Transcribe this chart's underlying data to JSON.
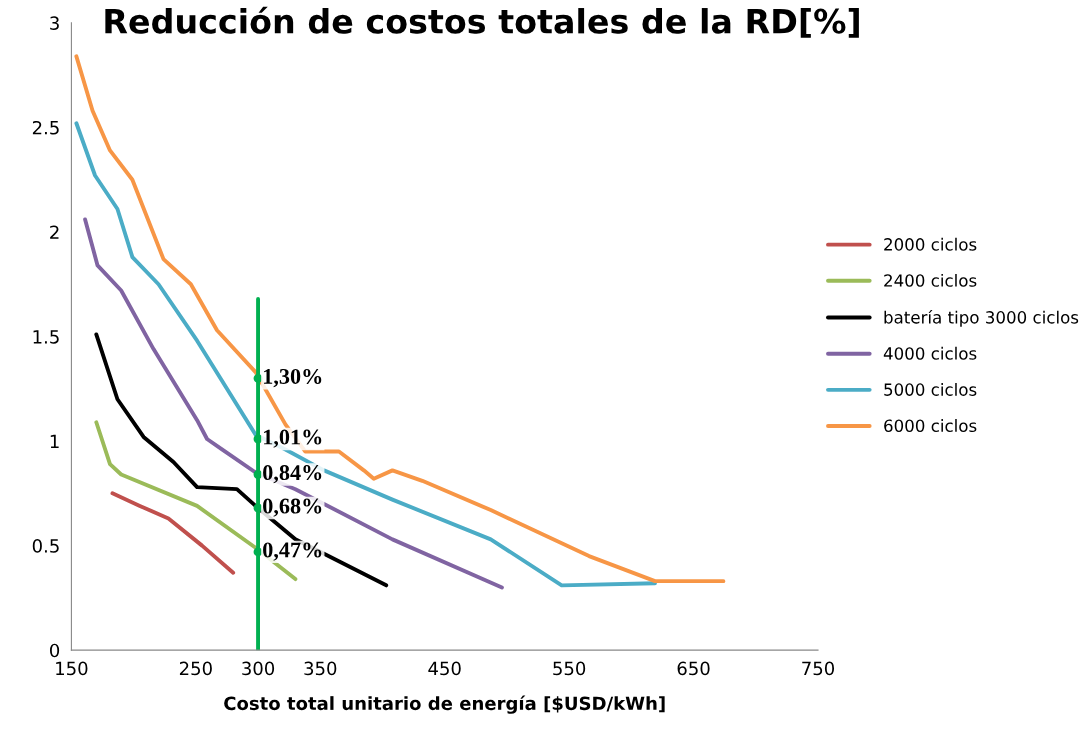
{
  "chart_data": {
    "type": "line",
    "title": "Reducción de costos totales de la RD[%]",
    "xlabel": "Costo total unitario de energía [$USD/kWh]",
    "xlim": [
      150,
      750
    ],
    "xticks": [
      150,
      250,
      300,
      350,
      450,
      550,
      650,
      750
    ],
    "ylim": [
      0,
      3
    ],
    "yticks": [
      0,
      0.5,
      1,
      1.5,
      2,
      2.5,
      3
    ],
    "grid": false,
    "legend": "right",
    "marker": "none",
    "series": [
      {
        "name": "2000 ciclos",
        "color": "#c0504d",
        "x": [
          183,
          205,
          228,
          255,
          280
        ],
        "values": [
          0.75,
          0.69,
          0.63,
          0.5,
          0.37
        ]
      },
      {
        "name": "2400 ciclos",
        "color": "#9bbb59",
        "x": [
          170,
          181,
          190,
          251,
          298,
          330
        ],
        "values": [
          1.09,
          0.89,
          0.84,
          0.69,
          0.49,
          0.34
        ]
      },
      {
        "name": "batería tipo 3000 ciclos",
        "color": "#000000",
        "x": [
          170,
          187,
          208,
          232,
          251,
          283,
          298,
          330,
          403
        ],
        "values": [
          1.51,
          1.2,
          1.02,
          0.9,
          0.78,
          0.77,
          0.69,
          0.53,
          0.31
        ]
      },
      {
        "name": "4000 ciclos",
        "color": "#8064a2",
        "x": [
          161,
          171,
          190,
          216,
          251,
          259,
          271,
          298,
          330,
          408,
          496
        ],
        "values": [
          2.06,
          1.84,
          1.72,
          1.44,
          1.1,
          1.01,
          0.96,
          0.85,
          0.77,
          0.53,
          0.3
        ]
      },
      {
        "name": "5000 ciclos",
        "color": "#4bacc6",
        "x": [
          154,
          169,
          187,
          199,
          220,
          251,
          298,
          322,
          353,
          408,
          487,
          544,
          619
        ],
        "values": [
          2.52,
          2.27,
          2.11,
          1.88,
          1.75,
          1.48,
          1.03,
          0.96,
          0.86,
          0.72,
          0.53,
          0.31,
          0.32
        ]
      },
      {
        "name": "6000 ciclos",
        "color": "#f79646",
        "x": [
          154,
          167,
          181,
          199,
          224,
          246,
          267,
          298,
          322,
          338,
          365,
          385,
          393,
          408,
          432,
          487,
          566,
          619,
          674
        ],
        "values": [
          2.84,
          2.58,
          2.39,
          2.25,
          1.87,
          1.75,
          1.53,
          1.33,
          1.08,
          0.95,
          0.95,
          0.86,
          0.82,
          0.86,
          0.81,
          0.67,
          0.45,
          0.33,
          0.33
        ]
      },
      {
        "type": "line",
        "color": "#00b050",
        "x": [
          300,
          300
        ],
        "values": [
          0,
          1.68
        ]
      },
      {
        "type": "scatter",
        "color": "#00b050",
        "x": [
          300,
          300,
          300,
          300,
          300
        ],
        "values": [
          1.3,
          1.01,
          0.84,
          0.68,
          0.47
        ],
        "value_labels": [
          "1,30%",
          "1,01%",
          "0,84%",
          "0,68%",
          "0,47%"
        ]
      }
    ]
  }
}
